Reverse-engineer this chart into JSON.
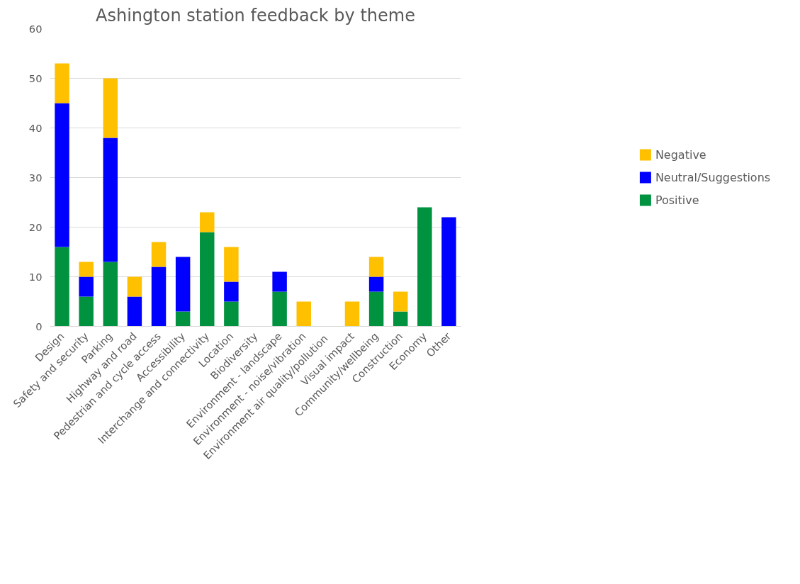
{
  "chart_data": {
    "type": "bar",
    "title": "Ashington station feedback by theme",
    "categories": [
      "Design",
      "Safety and security",
      "Parking",
      "Highway and road",
      "Pedestrian and cycle access",
      "Accessibility",
      "Interchange and connectivity",
      "Location",
      "Biodiversity",
      "Environment - landscape",
      "Environment - noise/vibration",
      "Environment  air quality/pollution",
      "Visual impact",
      "Community/wellbeing",
      "Construction",
      "Economy",
      "Other"
    ],
    "series": [
      {
        "name": "Positive",
        "color": "#00923f",
        "values": [
          16,
          6,
          13,
          0,
          0,
          3,
          19,
          5,
          0,
          7,
          0,
          0,
          0,
          7,
          3,
          24,
          0
        ]
      },
      {
        "name": "Neutral/Suggestions",
        "color": "#0000ff",
        "values": [
          29,
          4,
          25,
          6,
          12,
          11,
          0,
          4,
          0,
          4,
          0,
          0,
          0,
          3,
          0,
          0,
          22
        ]
      },
      {
        "name": "Negative",
        "color": "#ffc000",
        "values": [
          8,
          3,
          12,
          4,
          5,
          0,
          4,
          7,
          0,
          0,
          5,
          0,
          5,
          4,
          4,
          0,
          0
        ]
      }
    ],
    "stacked": true,
    "ylim": [
      0,
      60
    ],
    "yticks": [
      0,
      10,
      20,
      30,
      40,
      50,
      60
    ],
    "grid": "y",
    "legend": "right"
  }
}
